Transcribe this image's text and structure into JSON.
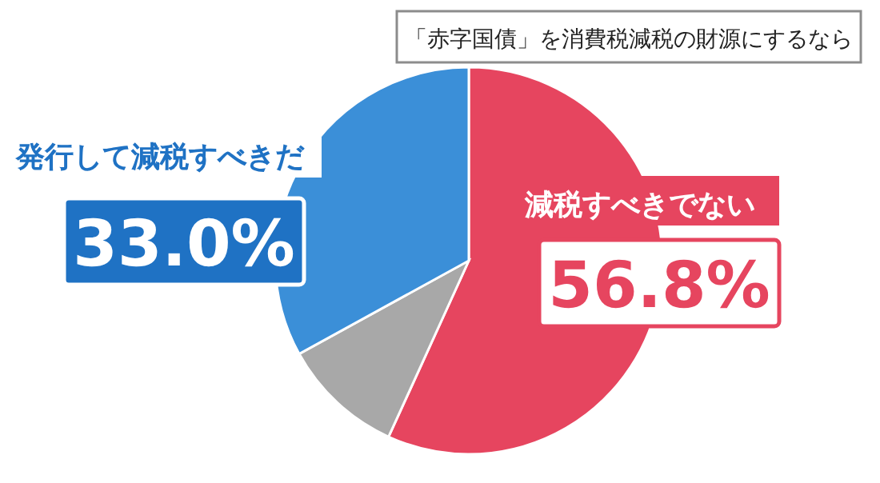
{
  "chart_data": {
    "type": "pie",
    "title": "「赤字国債」を消費税減税の財源にするなら",
    "categories": [
      "減税すべきでない",
      null,
      "発行して減税すべきだ"
    ],
    "values": [
      56.8,
      10.2,
      33.0
    ],
    "value_labels": [
      "56.8%",
      null,
      "33.0%"
    ],
    "colors": [
      "#e6455f",
      "#a8a8a8",
      "#3b8fd8"
    ]
  }
}
